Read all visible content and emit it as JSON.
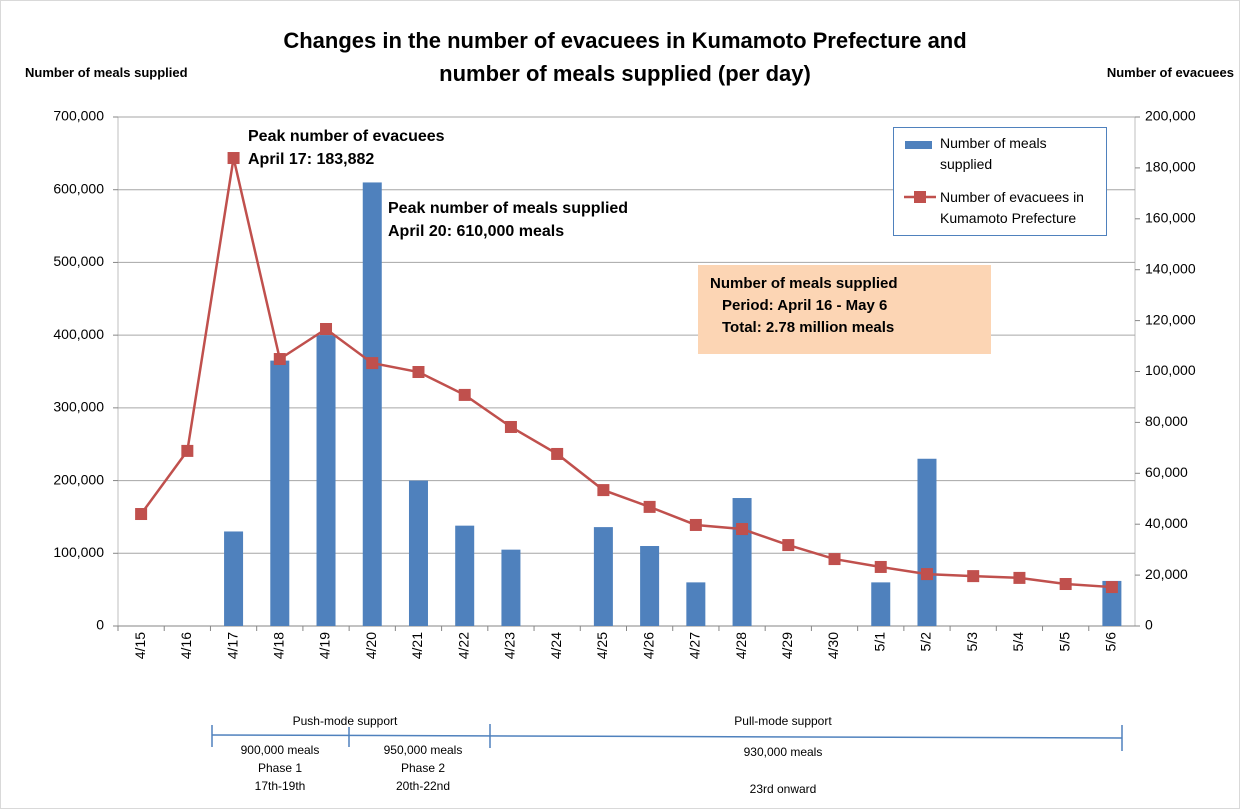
{
  "chart_data": {
    "type": "bar_line",
    "title": "Changes in the number of evacuees in Kumamoto Prefecture and number of meals supplied (per day)",
    "y_label": "Number of meals supplied",
    "y2_label": "Number of evacuees",
    "categories": [
      "4/15",
      "4/16",
      "4/17",
      "4/18",
      "4/19",
      "4/20",
      "4/21",
      "4/22",
      "4/23",
      "4/24",
      "4/25",
      "4/26",
      "4/27",
      "4/28",
      "4/29",
      "4/30",
      "5/1",
      "5/2",
      "5/3",
      "5/4",
      "5/5",
      "5/6"
    ],
    "series": [
      {
        "name": "Number of meals supplied",
        "type": "bar",
        "color": "#4f81bd",
        "values": [
          null,
          null,
          130000,
          365000,
          400000,
          610000,
          200000,
          138000,
          105000,
          null,
          136000,
          110000,
          60000,
          176000,
          null,
          null,
          60000,
          230000,
          null,
          null,
          null,
          62000
        ]
      },
      {
        "name": "Number of evacuees in Kumamoto Prefecture",
        "type": "line",
        "axis": "y2",
        "color": "#c0504d",
        "values": [
          44000,
          68800,
          183882,
          104900,
          116700,
          103300,
          99800,
          90800,
          78200,
          67600,
          53400,
          46800,
          39700,
          38100,
          31800,
          26300,
          23200,
          20400,
          19600,
          18900,
          16500,
          15300
        ]
      }
    ],
    "ylim": [
      0,
      700000
    ],
    "yticks": [
      0,
      {
        "value": 100000,
        "label": "100,000"
      },
      {
        "value": 200000,
        "label": "200,000"
      },
      {
        "value": 300000,
        "label": "300,000"
      },
      {
        "value": 400000,
        "label": "400,000"
      },
      {
        "value": 500000,
        "label": "500,000"
      },
      {
        "value": 600000,
        "label": "600,000"
      },
      {
        "value": 700000,
        "label": "700,000"
      }
    ],
    "y2lim": [
      0,
      200000
    ],
    "y2ticks": [
      0,
      {
        "value": 20000,
        "label": "20,000"
      },
      {
        "value": 40000,
        "label": "40,000"
      },
      {
        "value": 60000,
        "label": "60,000"
      },
      {
        "value": 80000,
        "label": "80,000"
      },
      {
        "value": 100000,
        "label": "100,000"
      },
      {
        "value": 120000,
        "label": "120,000"
      },
      {
        "value": 140000,
        "label": "140,000"
      },
      {
        "value": 160000,
        "label": "160,000"
      },
      {
        "value": 180000,
        "label": "180,000"
      },
      {
        "value": 200000,
        "label": "200,000"
      }
    ],
    "grid": true,
    "legend": "top-right",
    "annotations": [
      {
        "lines": [
          "Peak number of evacuees",
          "April 17: 183,882"
        ]
      },
      {
        "lines": [
          "Peak number of meals supplied",
          "April 20: 610,000 meals"
        ]
      },
      {
        "lines": [
          "Number of meals supplied",
          "Period: April 16 - May 6",
          "Total: 2.78 million meals"
        ]
      }
    ],
    "timeline": {
      "push": "Push-mode support",
      "pull": "Pull-mode support",
      "phase1": [
        "900,000 meals",
        "Phase 1",
        "17th-19th"
      ],
      "phase2": [
        "950,000 meals",
        "Phase 2",
        "20th-22nd"
      ],
      "phase3": [
        "930,000 meals",
        "23rd onward"
      ]
    }
  }
}
